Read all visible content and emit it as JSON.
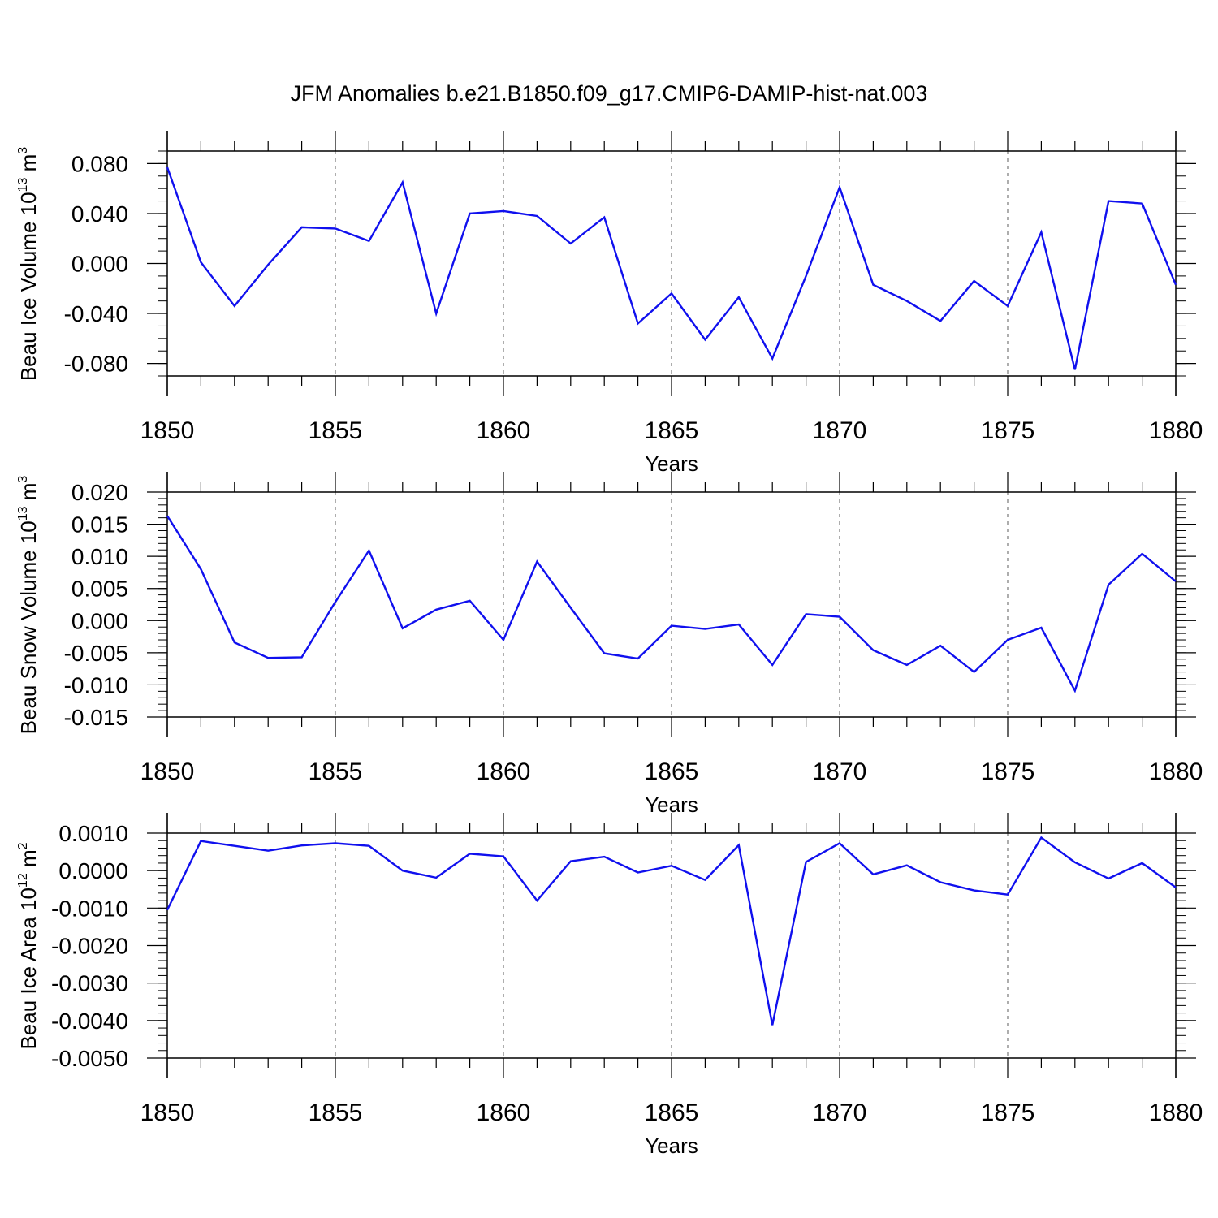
{
  "title": "JFM Anomalies b.e21.B1850.f09_g17.CMIP6-DAMIP-hist-nat.003",
  "colors": {
    "line": "#1010ee",
    "axis": "#000000",
    "grid": "#777777"
  },
  "chart_data": [
    {
      "type": "line",
      "name": "ice-volume",
      "ylabel": {
        "text": "Beau Ice Volume 10",
        "exp": "13",
        "unit": " m",
        "unit_exp": "3"
      },
      "xlabel": "Years",
      "xlim": [
        1850,
        1880
      ],
      "ylim": [
        -0.09,
        0.09
      ],
      "x_ticks": [
        "1850",
        "1855",
        "1860",
        "1865",
        "1870",
        "1875",
        "1880"
      ],
      "y_ticks": [
        {
          "v": 0.08,
          "label": "0.080"
        },
        {
          "v": 0.04,
          "label": "0.040"
        },
        {
          "v": 0.0,
          "label": "0.000"
        },
        {
          "v": -0.04,
          "label": "-0.040"
        },
        {
          "v": -0.08,
          "label": "-0.080"
        }
      ],
      "y_minor_step": 0.01,
      "x": [
        1850,
        1851,
        1852,
        1853,
        1854,
        1855,
        1856,
        1857,
        1858,
        1859,
        1860,
        1861,
        1862,
        1863,
        1864,
        1865,
        1866,
        1867,
        1868,
        1869,
        1870,
        1871,
        1872,
        1873,
        1874,
        1875,
        1876,
        1877,
        1878,
        1879,
        1880
      ],
      "values": [
        0.077,
        0.001,
        -0.034,
        -0.001,
        0.029,
        0.028,
        0.018,
        0.065,
        -0.04,
        0.04,
        0.042,
        0.038,
        0.016,
        0.037,
        -0.048,
        -0.024,
        -0.061,
        -0.027,
        -0.076,
        -0.01,
        0.061,
        -0.017,
        -0.03,
        -0.046,
        -0.014,
        -0.034,
        0.025,
        -0.085,
        0.05,
        0.048,
        -0.017
      ]
    },
    {
      "type": "line",
      "name": "snow-volume",
      "ylabel": {
        "text": "Beau Snow Volume 10",
        "exp": "13",
        "unit": " m",
        "unit_exp": "3"
      },
      "xlabel": "Years",
      "xlim": [
        1850,
        1880
      ],
      "ylim": [
        -0.015,
        0.02
      ],
      "x_ticks": [
        "1850",
        "1855",
        "1860",
        "1865",
        "1870",
        "1875",
        "1880"
      ],
      "y_ticks": [
        {
          "v": 0.02,
          "label": "0.020"
        },
        {
          "v": 0.015,
          "label": "0.015"
        },
        {
          "v": 0.01,
          "label": "0.010"
        },
        {
          "v": 0.005,
          "label": "0.005"
        },
        {
          "v": 0.0,
          "label": "0.000"
        },
        {
          "v": -0.005,
          "label": "-0.005"
        },
        {
          "v": -0.01,
          "label": "-0.010"
        },
        {
          "v": -0.015,
          "label": "-0.015"
        }
      ],
      "y_minor_step": 0.001,
      "x": [
        1850,
        1851,
        1852,
        1853,
        1854,
        1855,
        1856,
        1857,
        1858,
        1859,
        1860,
        1861,
        1862,
        1863,
        1864,
        1865,
        1866,
        1867,
        1868,
        1869,
        1870,
        1871,
        1872,
        1873,
        1874,
        1875,
        1876,
        1877,
        1878,
        1879,
        1880
      ],
      "values": [
        0.0163,
        0.008,
        -0.0034,
        -0.0058,
        -0.0057,
        0.0029,
        0.0109,
        -0.0012,
        0.0017,
        0.0031,
        -0.003,
        0.0092,
        0.002,
        -0.0051,
        -0.0059,
        -0.0008,
        -0.0013,
        -0.0006,
        -0.0069,
        0.001,
        0.0006,
        -0.0046,
        -0.0069,
        -0.0039,
        -0.008,
        -0.003,
        -0.0011,
        -0.0109,
        0.0056,
        0.0104,
        0.0061
      ]
    },
    {
      "type": "line",
      "name": "ice-area",
      "ylabel": {
        "text": "Beau Ice Area 10",
        "exp": "12",
        "unit": " m",
        "unit_exp": "2"
      },
      "xlabel": "Years",
      "xlim": [
        1850,
        1880
      ],
      "ylim": [
        -0.005,
        0.001
      ],
      "x_ticks": [
        "1850",
        "1855",
        "1860",
        "1865",
        "1870",
        "1875",
        "1880"
      ],
      "y_ticks": [
        {
          "v": 0.001,
          "label": "0.0010"
        },
        {
          "v": 0.0,
          "label": "0.0000"
        },
        {
          "v": -0.001,
          "label": "-0.0010"
        },
        {
          "v": -0.002,
          "label": "-0.0020"
        },
        {
          "v": -0.003,
          "label": "-0.0030"
        },
        {
          "v": -0.004,
          "label": "-0.0040"
        },
        {
          "v": -0.005,
          "label": "-0.0050"
        }
      ],
      "y_minor_step": 0.0002,
      "x": [
        1850,
        1851,
        1852,
        1853,
        1854,
        1855,
        1856,
        1857,
        1858,
        1859,
        1860,
        1861,
        1862,
        1863,
        1864,
        1865,
        1866,
        1867,
        1868,
        1869,
        1870,
        1871,
        1872,
        1873,
        1874,
        1875,
        1876,
        1877,
        1878,
        1879,
        1880
      ],
      "values": [
        -0.00105,
        0.00079,
        0.00066,
        0.00053,
        0.00067,
        0.00073,
        0.00066,
        0.0,
        -0.00019,
        0.00045,
        0.00038,
        -0.0008,
        0.00025,
        0.00037,
        -5e-05,
        0.00013,
        -0.00025,
        0.00068,
        -0.00412,
        0.00023,
        0.00073,
        -0.0001,
        0.00014,
        -0.00031,
        -0.00053,
        -0.00064,
        0.00088,
        0.00022,
        -0.00021,
        0.0002,
        -0.00045
      ]
    }
  ]
}
